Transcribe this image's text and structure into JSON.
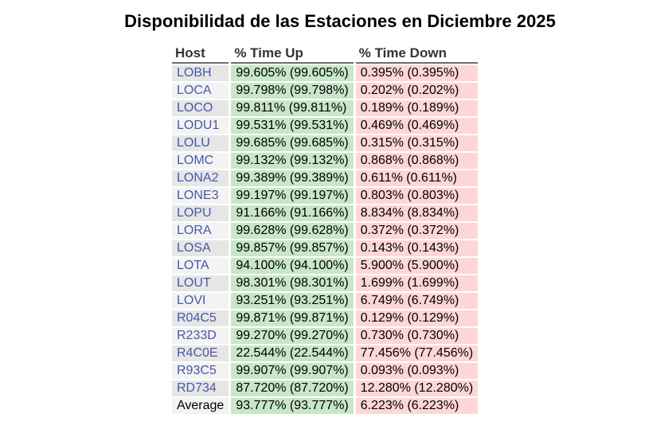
{
  "title": "Disponibilidad de las Estaciones en Diciembre 2025",
  "table": {
    "headers": [
      "Host",
      "% Time Up",
      "% Time Down"
    ],
    "rows": [
      {
        "host": "LOBH",
        "up": "99.605% (99.605%)",
        "down": "0.395% (0.395%)"
      },
      {
        "host": "LOCA",
        "up": "99.798% (99.798%)",
        "down": "0.202% (0.202%)"
      },
      {
        "host": "LOCO",
        "up": "99.811% (99.811%)",
        "down": "0.189% (0.189%)"
      },
      {
        "host": "LODU1",
        "up": "99.531% (99.531%)",
        "down": "0.469% (0.469%)"
      },
      {
        "host": "LOLU",
        "up": "99.685% (99.685%)",
        "down": "0.315% (0.315%)"
      },
      {
        "host": "LOMC",
        "up": "99.132% (99.132%)",
        "down": "0.868% (0.868%)"
      },
      {
        "host": "LONA2",
        "up": "99.389% (99.389%)",
        "down": "0.611% (0.611%)"
      },
      {
        "host": "LONE3",
        "up": "99.197% (99.197%)",
        "down": "0.803% (0.803%)"
      },
      {
        "host": "LOPU",
        "up": "91.166% (91.166%)",
        "down": "8.834% (8.834%)"
      },
      {
        "host": "LORA",
        "up": "99.628% (99.628%)",
        "down": "0.372% (0.372%)"
      },
      {
        "host": "LOSA",
        "up": "99.857% (99.857%)",
        "down": "0.143% (0.143%)"
      },
      {
        "host": "LOTA",
        "up": "94.100% (94.100%)",
        "down": "5.900% (5.900%)"
      },
      {
        "host": "LOUT",
        "up": "98.301% (98.301%)",
        "down": "1.699% (1.699%)"
      },
      {
        "host": "LOVI",
        "up": "93.251% (93.251%)",
        "down": "6.749% (6.749%)"
      },
      {
        "host": "R04C5",
        "up": "99.871% (99.871%)",
        "down": "0.129% (0.129%)"
      },
      {
        "host": "R233D",
        "up": "99.270% (99.270%)",
        "down": "0.730% (0.730%)"
      },
      {
        "host": "R4C0E",
        "up": "22.544% (22.544%)",
        "down": "77.456% (77.456%)"
      },
      {
        "host": "R93C5",
        "up": "99.907% (99.907%)",
        "down": "0.093% (0.093%)"
      },
      {
        "host": "RD734",
        "up": "87.720% (87.720%)",
        "down": "12.280% (12.280%)"
      }
    ],
    "average": {
      "host": "Average",
      "up": "93.777% (93.777%)",
      "down": "6.223% (6.223%)"
    }
  },
  "colors": {
    "host_link": "#4a56a8",
    "up_bg": "#c8e6c9",
    "down_bg": "#ffd6d6",
    "host_bg_odd": "#e6e6e6",
    "host_bg_even": "#f3f3f3"
  }
}
